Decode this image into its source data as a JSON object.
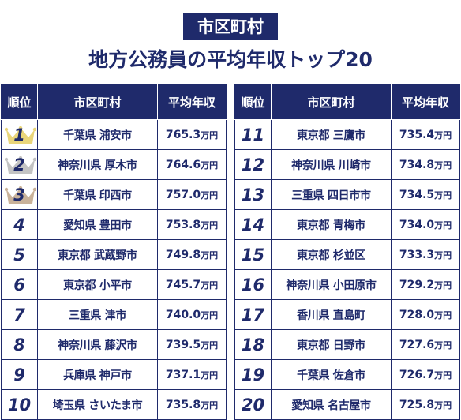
{
  "header": {
    "badge": "市区町村",
    "title": "地方公務員の平均年収トップ20"
  },
  "columns": {
    "rank": "順位",
    "city": "市区町村",
    "salary": "平均年収"
  },
  "unit": "万円",
  "colors": {
    "navy": "#1f2a6b",
    "gold": "#e9d57a",
    "silver": "#c3c3c3",
    "bronze": "#c9b29a"
  },
  "left_rows": [
    {
      "rank": "1",
      "pref": "千葉県",
      "city": "浦安市",
      "value": "765.3",
      "crown": "gold-crown-icon"
    },
    {
      "rank": "2",
      "pref": "神奈川県",
      "city": "厚木市",
      "value": "764.6",
      "crown": "silver-crown-icon"
    },
    {
      "rank": "3",
      "pref": "千葉県",
      "city": "印西市",
      "value": "757.0",
      "crown": "bronze-crown-icon"
    },
    {
      "rank": "4",
      "pref": "愛知県",
      "city": "豊田市",
      "value": "753.8"
    },
    {
      "rank": "5",
      "pref": "東京都",
      "city": "武蔵野市",
      "value": "749.8"
    },
    {
      "rank": "6",
      "pref": "東京都",
      "city": "小平市",
      "value": "745.7"
    },
    {
      "rank": "7",
      "pref": "三重県",
      "city": "津市",
      "value": "740.0"
    },
    {
      "rank": "8",
      "pref": "神奈川県",
      "city": "藤沢市",
      "value": "739.5"
    },
    {
      "rank": "9",
      "pref": "兵庫県",
      "city": "神戸市",
      "value": "737.1"
    },
    {
      "rank": "10",
      "pref": "埼玉県",
      "city": "さいたま市",
      "value": "735.8"
    }
  ],
  "right_rows": [
    {
      "rank": "11",
      "pref": "東京都",
      "city": "三鷹市",
      "value": "735.4"
    },
    {
      "rank": "12",
      "pref": "神奈川県",
      "city": "川崎市",
      "value": "734.8"
    },
    {
      "rank": "13",
      "pref": "三重県",
      "city": "四日市市",
      "value": "734.5"
    },
    {
      "rank": "14",
      "pref": "東京都",
      "city": "青梅市",
      "value": "734.0"
    },
    {
      "rank": "15",
      "pref": "東京都",
      "city": "杉並区",
      "value": "733.3"
    },
    {
      "rank": "16",
      "pref": "神奈川県",
      "city": "小田原市",
      "value": "729.2"
    },
    {
      "rank": "17",
      "pref": "香川県",
      "city": "直島町",
      "value": "728.0"
    },
    {
      "rank": "18",
      "pref": "東京都",
      "city": "日野市",
      "value": "727.6"
    },
    {
      "rank": "19",
      "pref": "千葉県",
      "city": "佐倉市",
      "value": "726.7"
    },
    {
      "rank": "20",
      "pref": "愛知県",
      "city": "名古屋市",
      "value": "725.8"
    }
  ]
}
